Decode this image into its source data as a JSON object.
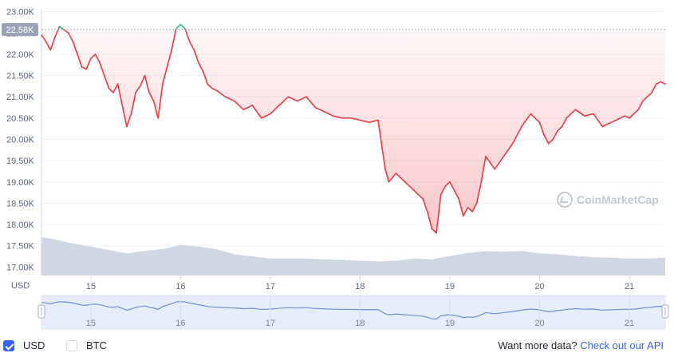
{
  "chart_data": {
    "type": "line",
    "y_ticks": [
      "23.00K",
      "22.50K",
      "22.00K",
      "21.50K",
      "21.00K",
      "20.50K",
      "20.00K",
      "19.50K",
      "19.00K",
      "18.50K",
      "18.00K",
      "17.50K",
      "17.00K"
    ],
    "ylim": [
      16800,
      23050
    ],
    "x_ticks": [
      "15",
      "16",
      "17",
      "18",
      "19",
      "20",
      "21"
    ],
    "x_tick_values": [
      15,
      16,
      17,
      18,
      19,
      20,
      21
    ],
    "xlim": [
      14.45,
      21.4
    ],
    "y_axis_unit": "USD",
    "current_price_label": "22.58K",
    "current_price_value": 22580,
    "series": [
      {
        "x": [
          14.45,
          14.5,
          14.55,
          14.6,
          14.65,
          14.7,
          14.75,
          14.8,
          14.85,
          14.9,
          14.95,
          15.0,
          15.05,
          15.1,
          15.15,
          15.2,
          15.25,
          15.3,
          15.35,
          15.4,
          15.45,
          15.5,
          15.55,
          15.6,
          15.65,
          15.7,
          15.75,
          15.8,
          15.85,
          15.9,
          15.95,
          16.0,
          16.05,
          16.1,
          16.15,
          16.2,
          16.25,
          16.3,
          16.35,
          16.4,
          16.5,
          16.6,
          16.7,
          16.8,
          16.9,
          17.0,
          17.1,
          17.2,
          17.3,
          17.4,
          17.5,
          17.6,
          17.7,
          17.8,
          17.9,
          18.0,
          18.1,
          18.2,
          18.28,
          18.32,
          18.4,
          18.5,
          18.6,
          18.7,
          18.75,
          18.8,
          18.85,
          18.9,
          18.95,
          19.0,
          19.05,
          19.1,
          19.15,
          19.2,
          19.25,
          19.3,
          19.35,
          19.4,
          19.5,
          19.6,
          19.7,
          19.8,
          19.9,
          20.0,
          20.05,
          20.1,
          20.15,
          20.2,
          20.25,
          20.3,
          20.4,
          20.5,
          20.6,
          20.7,
          20.8,
          20.9,
          20.95,
          21.0,
          21.05,
          21.1,
          21.15,
          21.2,
          21.25,
          21.3,
          21.35,
          21.4
        ],
        "y": [
          22450,
          22300,
          22100,
          22400,
          22650,
          22580,
          22500,
          22300,
          22000,
          21700,
          21650,
          21900,
          22000,
          21800,
          21500,
          21200,
          21100,
          21300,
          20800,
          20300,
          20600,
          21100,
          21250,
          21500,
          21100,
          20900,
          20500,
          21300,
          21700,
          22100,
          22600,
          22700,
          22600,
          22300,
          22100,
          21800,
          21600,
          21300,
          21200,
          21150,
          21000,
          20900,
          20700,
          20800,
          20500,
          20600,
          20800,
          21000,
          20900,
          21000,
          20750,
          20650,
          20550,
          20500,
          20500,
          20450,
          20400,
          20450,
          19300,
          19000,
          19200,
          19000,
          18800,
          18600,
          18300,
          17900,
          17800,
          18700,
          18900,
          19000,
          18800,
          18600,
          18200,
          18400,
          18300,
          18500,
          19000,
          19600,
          19300,
          19600,
          19900,
          20300,
          20600,
          20400,
          20100,
          19900,
          20000,
          20200,
          20300,
          20500,
          20700,
          20550,
          20600,
          20300,
          20400,
          20500,
          20550,
          20500,
          20600,
          20700,
          20900,
          21000,
          21100,
          21300,
          21350,
          21300
        ]
      }
    ],
    "volume_band": {
      "x": [
        14.45,
        14.6,
        14.8,
        15.0,
        15.2,
        15.4,
        15.6,
        15.8,
        16.0,
        16.2,
        16.4,
        16.6,
        16.8,
        17.0,
        17.2,
        17.4,
        17.6,
        17.8,
        18.0,
        18.2,
        18.4,
        18.6,
        18.8,
        19.0,
        19.2,
        19.4,
        19.6,
        19.8,
        20.0,
        20.2,
        20.4,
        20.6,
        20.8,
        21.0,
        21.2,
        21.4
      ],
      "y": [
        17700,
        17650,
        17550,
        17480,
        17400,
        17320,
        17380,
        17420,
        17520,
        17480,
        17420,
        17300,
        17250,
        17200,
        17200,
        17200,
        17180,
        17170,
        17150,
        17130,
        17150,
        17200,
        17180,
        17260,
        17330,
        17370,
        17360,
        17380,
        17320,
        17300,
        17260,
        17230,
        17220,
        17200,
        17200,
        17220
      ]
    },
    "navigator": {
      "x_ticks": [
        "15",
        "16",
        "17",
        "18",
        "19",
        "20",
        "21"
      ]
    }
  },
  "colors": {
    "line_down": "#ea3943",
    "line_up": "#16c784",
    "fill_down": "#ea3943",
    "volume_fill": "#d1d6e3",
    "navigator_line": "#6f8ed8",
    "navigator_fill": "#dbe3f7"
  },
  "watermark": "CoinMarketCap",
  "footer": {
    "usd_label": "USD",
    "btc_label": "BTC",
    "more_data_text": "Want more data?",
    "api_link_text": "Check out our API"
  }
}
